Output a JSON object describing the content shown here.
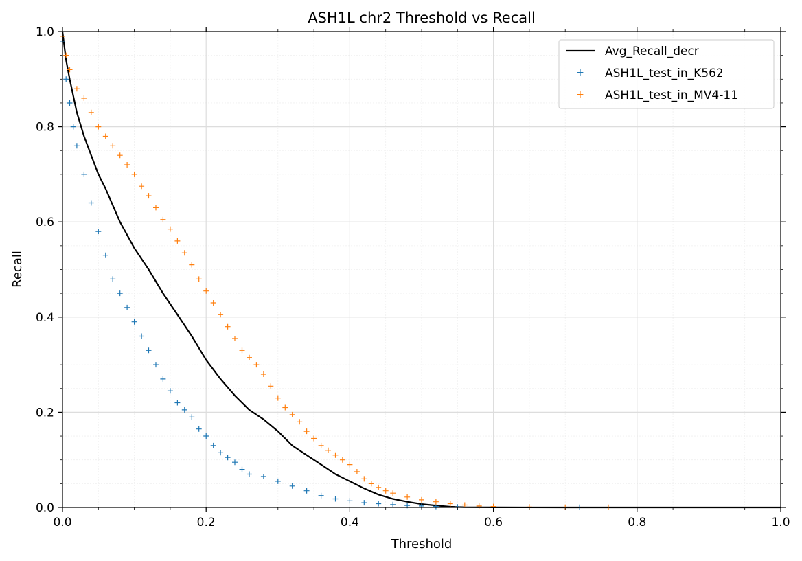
{
  "chart_data": {
    "type": "scatter",
    "title": "ASH1L chr2 Threshold vs Recall",
    "xlabel": "Threshold",
    "ylabel": "Recall",
    "xlim": [
      0.0,
      1.0
    ],
    "ylim": [
      0.0,
      1.0
    ],
    "grid": true,
    "legend_position": "top-right",
    "x_ticks": [
      "0.0",
      "0.2",
      "0.4",
      "0.6",
      "0.8",
      "1.0"
    ],
    "y_ticks": [
      "0.0",
      "0.2",
      "0.4",
      "0.6",
      "0.8",
      "1.0"
    ],
    "legend": [
      "Avg_Recall_decr",
      "ASH1L_test_in_K562",
      "ASH1L_test_in_MV4-11"
    ],
    "series": [
      {
        "name": "Avg_Recall_decr",
        "kind": "line",
        "color": "#000000",
        "x": [
          0.0,
          0.005,
          0.01,
          0.02,
          0.03,
          0.04,
          0.05,
          0.06,
          0.08,
          0.1,
          0.12,
          0.14,
          0.16,
          0.18,
          0.2,
          0.22,
          0.24,
          0.26,
          0.28,
          0.3,
          0.32,
          0.34,
          0.36,
          0.38,
          0.4,
          0.42,
          0.44,
          0.46,
          0.48,
          0.5,
          0.52,
          0.54,
          0.56,
          0.6,
          0.7,
          0.8,
          1.0
        ],
        "y": [
          1.0,
          0.94,
          0.9,
          0.83,
          0.78,
          0.74,
          0.7,
          0.67,
          0.6,
          0.545,
          0.5,
          0.45,
          0.405,
          0.36,
          0.31,
          0.27,
          0.235,
          0.205,
          0.185,
          0.16,
          0.13,
          0.11,
          0.09,
          0.07,
          0.055,
          0.04,
          0.027,
          0.018,
          0.012,
          0.007,
          0.004,
          0.0015,
          0.0005,
          0.0002,
          0.0,
          0.0,
          0.0
        ]
      },
      {
        "name": "ASH1L_test_in_K562",
        "kind": "scatter",
        "marker": "+",
        "color": "#1f77b4",
        "x": [
          0.0,
          0.005,
          0.01,
          0.015,
          0.02,
          0.03,
          0.04,
          0.05,
          0.06,
          0.07,
          0.08,
          0.09,
          0.1,
          0.11,
          0.12,
          0.13,
          0.14,
          0.15,
          0.16,
          0.17,
          0.18,
          0.19,
          0.2,
          0.21,
          0.22,
          0.23,
          0.24,
          0.25,
          0.26,
          0.28,
          0.3,
          0.32,
          0.34,
          0.36,
          0.38,
          0.4,
          0.42,
          0.44,
          0.46,
          0.48,
          0.5,
          0.52,
          0.55,
          0.6,
          0.65,
          0.72
        ],
        "y": [
          0.98,
          0.9,
          0.85,
          0.8,
          0.76,
          0.7,
          0.64,
          0.58,
          0.53,
          0.48,
          0.45,
          0.42,
          0.39,
          0.36,
          0.33,
          0.3,
          0.27,
          0.245,
          0.22,
          0.205,
          0.19,
          0.165,
          0.15,
          0.13,
          0.115,
          0.105,
          0.095,
          0.08,
          0.07,
          0.065,
          0.055,
          0.045,
          0.035,
          0.025,
          0.018,
          0.014,
          0.01,
          0.008,
          0.006,
          0.004,
          0.003,
          0.002,
          0.001,
          0.001,
          0.0005,
          0.0003
        ]
      },
      {
        "name": "ASH1L_test_in_MV4-11",
        "kind": "scatter",
        "marker": "+",
        "color": "#ff7f0e",
        "x": [
          0.0,
          0.005,
          0.01,
          0.02,
          0.03,
          0.04,
          0.05,
          0.06,
          0.07,
          0.08,
          0.09,
          0.1,
          0.11,
          0.12,
          0.13,
          0.14,
          0.15,
          0.16,
          0.17,
          0.18,
          0.19,
          0.2,
          0.21,
          0.22,
          0.23,
          0.24,
          0.25,
          0.26,
          0.27,
          0.28,
          0.29,
          0.3,
          0.31,
          0.32,
          0.33,
          0.34,
          0.35,
          0.36,
          0.37,
          0.38,
          0.39,
          0.4,
          0.41,
          0.42,
          0.43,
          0.44,
          0.45,
          0.46,
          0.48,
          0.5,
          0.52,
          0.54,
          0.56,
          0.58,
          0.6,
          0.65,
          0.7,
          0.76
        ],
        "y": [
          0.99,
          0.95,
          0.92,
          0.88,
          0.86,
          0.83,
          0.8,
          0.78,
          0.76,
          0.74,
          0.72,
          0.7,
          0.675,
          0.655,
          0.63,
          0.605,
          0.585,
          0.56,
          0.535,
          0.51,
          0.48,
          0.455,
          0.43,
          0.405,
          0.38,
          0.355,
          0.33,
          0.315,
          0.3,
          0.28,
          0.255,
          0.23,
          0.21,
          0.195,
          0.18,
          0.16,
          0.145,
          0.13,
          0.12,
          0.11,
          0.1,
          0.09,
          0.075,
          0.06,
          0.05,
          0.042,
          0.035,
          0.03,
          0.022,
          0.016,
          0.012,
          0.008,
          0.005,
          0.003,
          0.002,
          0.001,
          0.0005,
          0.0003
        ]
      }
    ]
  }
}
